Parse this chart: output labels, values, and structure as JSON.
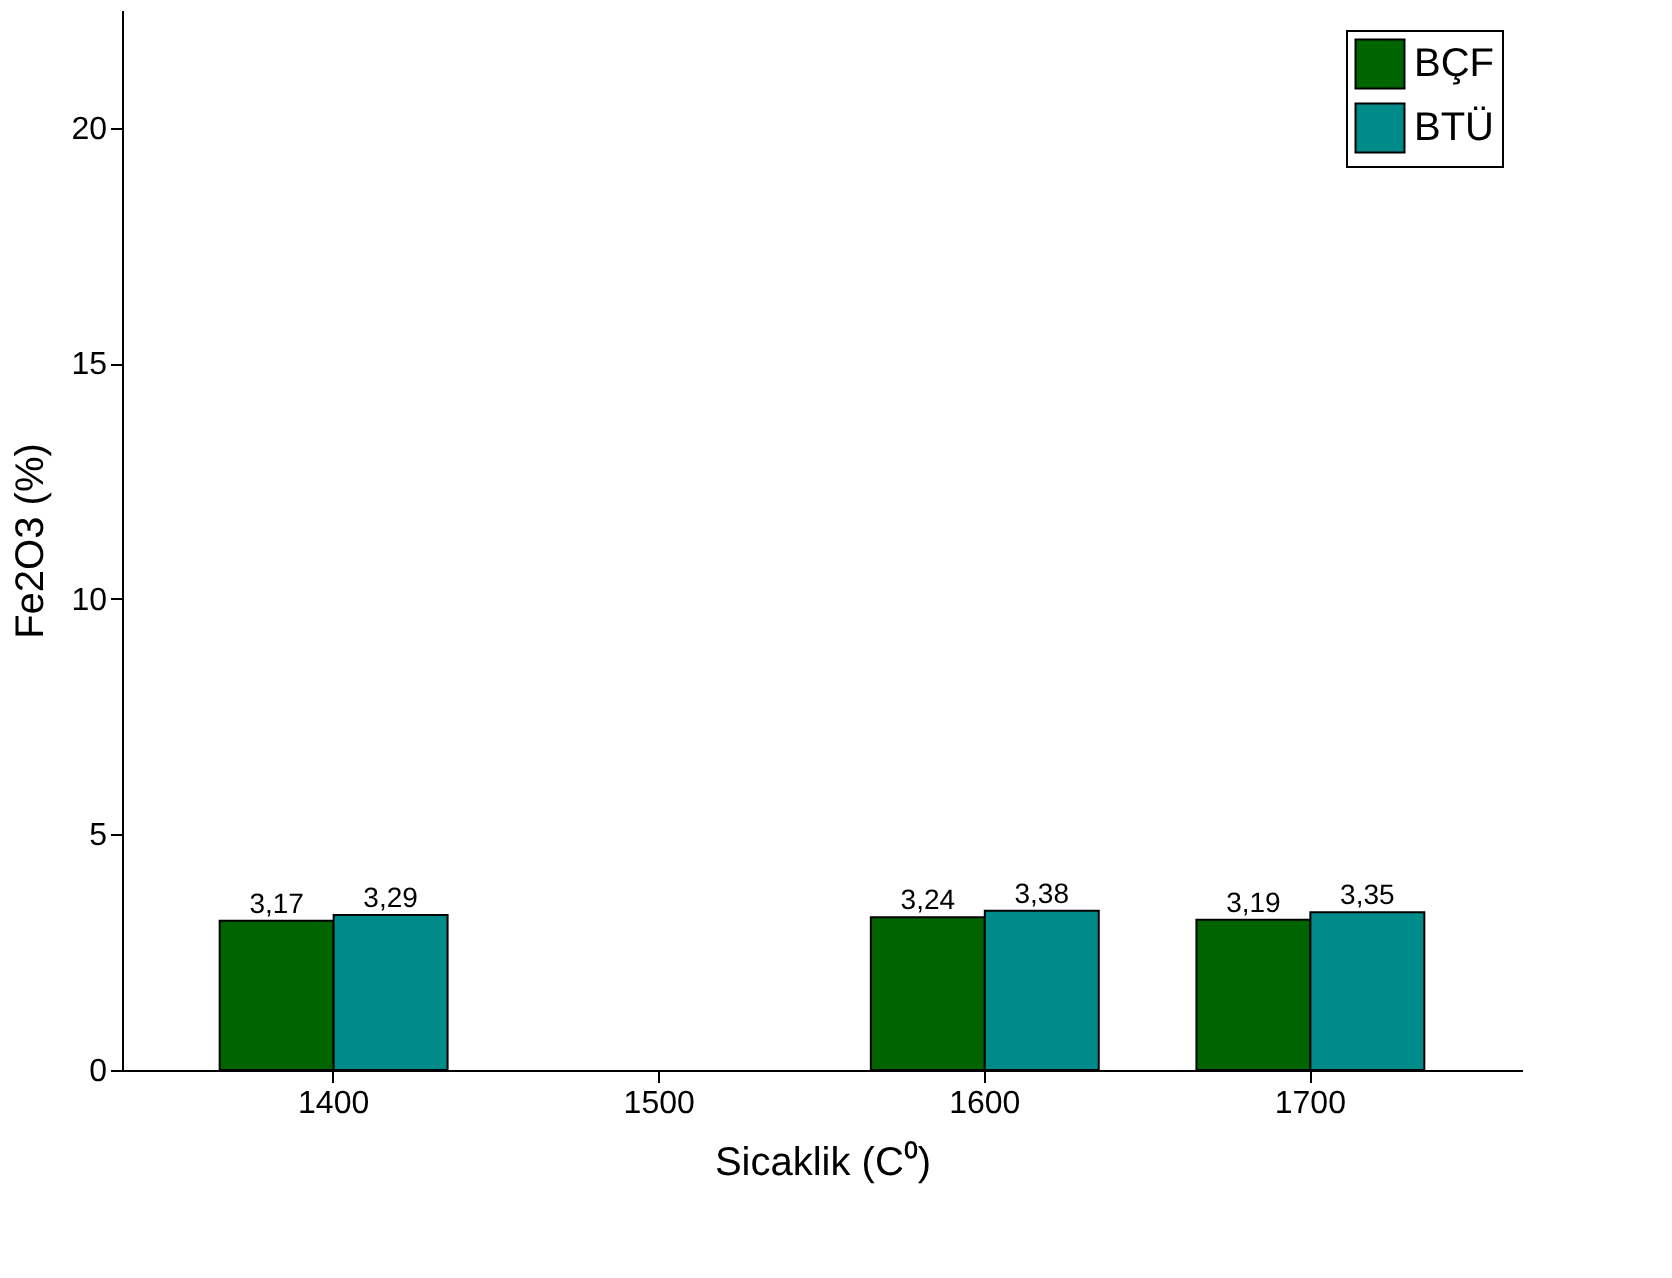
{
  "chart_data": {
    "type": "bar",
    "xlabel": "Sicaklik (C⁰)",
    "ylabel": "Fe2O3 (%)",
    "categories": [
      "1400",
      "1500",
      "1600",
      "1700"
    ],
    "series": [
      {
        "name": "BÇF",
        "color": "#006400",
        "values": [
          3.17,
          null,
          3.24,
          3.19
        ],
        "value_labels": [
          "3,17",
          null,
          "3,24",
          "3,19"
        ]
      },
      {
        "name": "BTÜ",
        "color": "#008b8b",
        "values": [
          3.29,
          null,
          3.38,
          3.35
        ],
        "value_labels": [
          "3,29",
          null,
          "3,38",
          "3,35"
        ]
      }
    ],
    "ylim": [
      0,
      22.5
    ],
    "yticks": [
      0,
      5,
      10,
      15,
      20
    ],
    "grid": false,
    "legend": "top right"
  }
}
